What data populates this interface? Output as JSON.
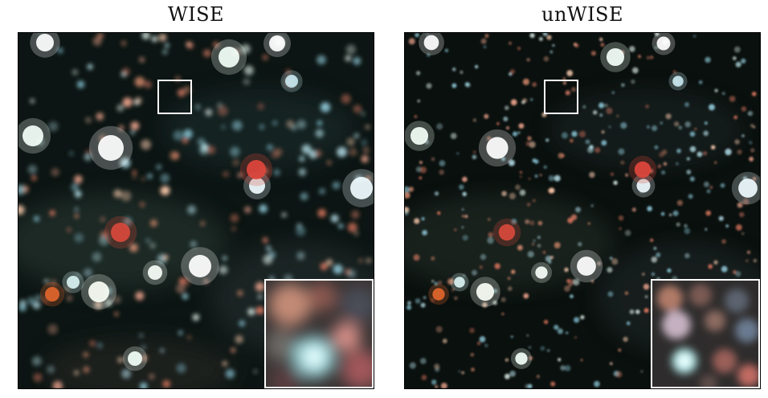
{
  "panels": [
    {
      "id": "left",
      "title": "WISE"
    },
    {
      "id": "right",
      "title": "unWISE"
    }
  ]
}
